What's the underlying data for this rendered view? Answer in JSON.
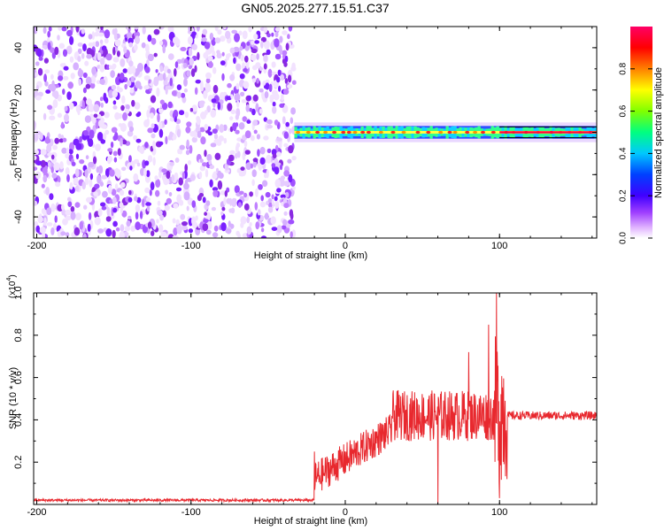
{
  "title": "GN05.2025.277.15.51.C37",
  "chart_data": [
    {
      "type": "heatmap",
      "name": "spectrogram",
      "xlabel": "Height of straight line (km)",
      "ylabel": "Frequency (Hz)",
      "xlim": [
        -202,
        163
      ],
      "ylim": [
        -50,
        50
      ],
      "xticks": [
        -200,
        -100,
        0,
        100
      ],
      "yticks": [
        -40,
        -20,
        0,
        20,
        40
      ],
      "colorbar": {
        "label": "Normalized spectral amplitude",
        "range": [
          0,
          1
        ],
        "ticks": [
          0.0,
          0.2,
          0.4,
          0.6,
          0.8
        ],
        "tick_labels": [
          "0.0",
          "0.2",
          "0.4",
          "0.6",
          "0.8"
        ],
        "colors": [
          "#ffffff",
          "#cc66ff",
          "#8000ff",
          "#0000ff",
          "#00bfff",
          "#00ff80",
          "#80ff00",
          "#ffff00",
          "#ff8000",
          "#ff0000",
          "#ff0066"
        ]
      },
      "noise_region": {
        "x_start": -202,
        "x_end": -33,
        "freq_range": [
          -50,
          50
        ],
        "amplitude_range": [
          0.0,
          0.3
        ]
      },
      "carrier_band": {
        "x_start": -33,
        "x_end": 163,
        "center_freq": 0,
        "halfwidth_hz": 3,
        "peak_amplitude": 0.95
      }
    },
    {
      "type": "line",
      "name": "snr",
      "xlabel": "Height of straight line (km)",
      "ylabel": "SNR (10 * v/v)",
      "scale_label": "(x10",
      "scale_exp": "4",
      "xlim": [
        -202,
        163
      ],
      "ylim": [
        0,
        1.0
      ],
      "xticks": [
        -200,
        -100,
        0,
        100
      ],
      "yticks": [
        0.2,
        0.4,
        0.6,
        0.8,
        1.0
      ],
      "color": "#e8282e",
      "segments": [
        {
          "x_start": -202,
          "x_end": -20,
          "mean": 0.02,
          "noise": 0.006
        },
        {
          "x_start": -20,
          "x_end": 30,
          "mean_start": 0.12,
          "mean_end": 0.35,
          "noise": 0.08
        },
        {
          "x_start": 30,
          "x_end": 97,
          "mean": 0.42,
          "noise": 0.12
        },
        {
          "x_start": 97,
          "x_end": 105,
          "mean": 0.45,
          "noise": 0.35
        },
        {
          "x_start": 105,
          "x_end": 163,
          "mean": 0.42,
          "noise": 0.02
        }
      ],
      "key_points": [
        {
          "x": -20,
          "y": 0.25
        },
        {
          "x": 60,
          "y": 0.0
        },
        {
          "x": 80,
          "y": 0.72
        },
        {
          "x": 93,
          "y": 0.85
        },
        {
          "x": 98,
          "y": 1.0
        },
        {
          "x": 100,
          "y": 0.03
        }
      ]
    }
  ]
}
